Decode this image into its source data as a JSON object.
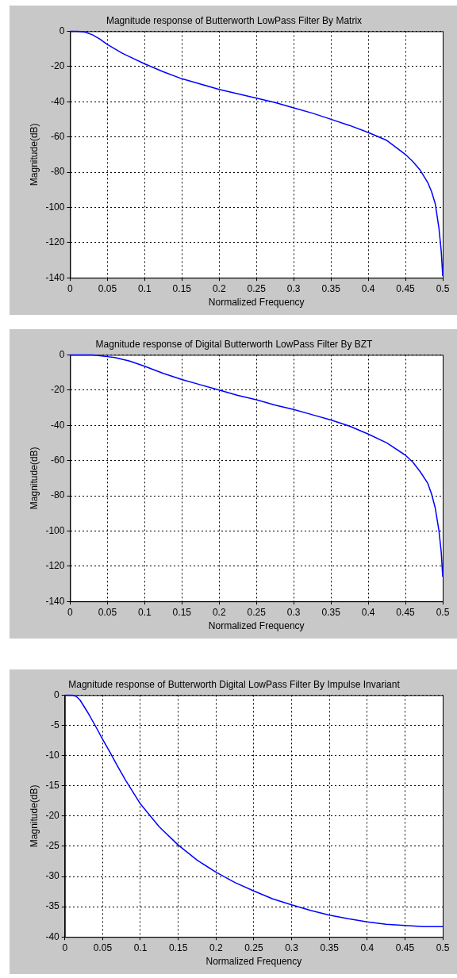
{
  "chart_data": [
    {
      "type": "line",
      "title": "Magnitude response of Butterworth LowPass Filter By Matrix",
      "xlabel": "Normalized Frequency",
      "ylabel": "Magnitude(dB)",
      "grid": true,
      "marker": "none",
      "line_style": "solid",
      "xlim": [
        0,
        0.5
      ],
      "xticks": [
        0,
        0.05,
        0.1,
        0.15,
        0.2,
        0.25,
        0.3,
        0.35,
        0.4,
        0.45,
        0.5
      ],
      "ylim": [
        -140,
        0
      ],
      "yticks": [
        -140,
        -120,
        -100,
        -80,
        -60,
        -40,
        -20,
        0
      ],
      "x": [
        0,
        0.01,
        0.02,
        0.03,
        0.04,
        0.05,
        0.06,
        0.07,
        0.08,
        0.1,
        0.125,
        0.15,
        0.175,
        0.2,
        0.225,
        0.25,
        0.275,
        0.3,
        0.325,
        0.35,
        0.375,
        0.4,
        0.425,
        0.45,
        0.46,
        0.47,
        0.48,
        0.485,
        0.49,
        0.495,
        0.498,
        0.5
      ],
      "series": [
        {
          "color": "#0000ff",
          "values": [
            0,
            0,
            -0.5,
            -2,
            -4.5,
            -7.5,
            -10,
            -12.5,
            -14.5,
            -18.5,
            -23,
            -27,
            -30,
            -33,
            -35.5,
            -38,
            -40.5,
            -43.5,
            -46.5,
            -50,
            -53.5,
            -57.5,
            -62,
            -70,
            -74,
            -79,
            -86,
            -91,
            -98,
            -112,
            -125,
            -139
          ]
        }
      ]
    },
    {
      "type": "line",
      "title": "Magnitude response of Digital Butterworth LowPass Filter By BZT",
      "xlabel": "Normalized Frequency",
      "ylabel": "Magnitude(dB)",
      "grid": true,
      "marker": "none",
      "line_style": "solid",
      "xlim": [
        0,
        0.5
      ],
      "xticks": [
        0,
        0.05,
        0.1,
        0.15,
        0.2,
        0.25,
        0.3,
        0.35,
        0.4,
        0.45,
        0.5
      ],
      "ylim": [
        -140,
        0
      ],
      "yticks": [
        -140,
        -120,
        -100,
        -80,
        -60,
        -40,
        -20,
        0
      ],
      "x": [
        0,
        0.03,
        0.04,
        0.05,
        0.06,
        0.07,
        0.08,
        0.09,
        0.1,
        0.125,
        0.15,
        0.175,
        0.2,
        0.225,
        0.25,
        0.275,
        0.3,
        0.325,
        0.35,
        0.375,
        0.4,
        0.425,
        0.45,
        0.46,
        0.47,
        0.48,
        0.485,
        0.49,
        0.495,
        0.498,
        0.5
      ],
      "series": [
        {
          "color": "#0000ff",
          "values": [
            0,
            0,
            -0.5,
            -1,
            -1.5,
            -2.5,
            -3.5,
            -5,
            -6.5,
            -10.5,
            -14,
            -17,
            -20,
            -23,
            -25.5,
            -28.5,
            -31,
            -34,
            -37,
            -40.5,
            -45,
            -50,
            -57,
            -61,
            -66.5,
            -73,
            -79,
            -87,
            -100,
            -112,
            -126
          ]
        }
      ]
    },
    {
      "type": "line",
      "title": "Magnitude response of Butterworth Digital LowPass Filter By Impulse Invariant",
      "xlabel": "Normalized Frequency",
      "ylabel": "Magnitude(dB)",
      "grid": true,
      "marker": "none",
      "line_style": "solid",
      "xlim": [
        0,
        0.5
      ],
      "xticks": [
        0,
        0.05,
        0.1,
        0.15,
        0.2,
        0.25,
        0.3,
        0.35,
        0.4,
        0.45,
        0.5
      ],
      "ylim": [
        -40,
        0
      ],
      "yticks": [
        -40,
        -35,
        -30,
        -25,
        -20,
        -15,
        -10,
        -5,
        0
      ],
      "x": [
        0,
        0.01,
        0.015,
        0.02,
        0.03,
        0.04,
        0.05,
        0.06,
        0.07,
        0.08,
        0.09,
        0.1,
        0.125,
        0.15,
        0.175,
        0.2,
        0.225,
        0.25,
        0.275,
        0.3,
        0.325,
        0.35,
        0.375,
        0.4,
        0.425,
        0.45,
        0.475,
        0.5
      ],
      "series": [
        {
          "color": "#0000ff",
          "values": [
            0,
            0,
            -0.2,
            -0.8,
            -2.8,
            -5,
            -7.3,
            -9.5,
            -11.8,
            -14,
            -16,
            -18,
            -21.8,
            -24.8,
            -27.3,
            -29.3,
            -31,
            -32.4,
            -33.7,
            -34.7,
            -35.6,
            -36.4,
            -37,
            -37.5,
            -37.9,
            -38.1,
            -38.3,
            -38.3
          ]
        }
      ]
    }
  ]
}
